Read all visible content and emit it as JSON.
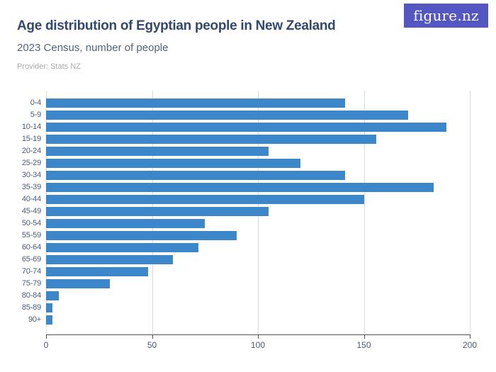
{
  "header": {
    "title": "Age distribution of Egyptian people in New Zealand",
    "subtitle": "2023 Census, number of people",
    "provider": "Provider: Stats NZ"
  },
  "logo": {
    "text": "figure.nz"
  },
  "chart_data": {
    "type": "bar",
    "orientation": "horizontal",
    "title": "Age distribution of Egyptian people in New Zealand",
    "subtitle": "2023 Census, number of people",
    "categories": [
      "0-4",
      "5-9",
      "10-14",
      "15-19",
      "20-24",
      "25-29",
      "30-34",
      "35-39",
      "40-44",
      "45-49",
      "50-54",
      "55-59",
      "60-64",
      "65-69",
      "70-74",
      "75-79",
      "80-84",
      "85-89",
      "90+"
    ],
    "values": [
      141,
      171,
      189,
      156,
      105,
      120,
      141,
      183,
      150,
      105,
      75,
      90,
      72,
      60,
      48,
      30,
      6,
      3,
      3
    ],
    "xlim": [
      0,
      200
    ],
    "xticks": [
      0,
      50,
      100,
      150,
      200
    ],
    "xlabel": "",
    "grid": "vertical",
    "legend": "none",
    "bar_color": "#3c87c9"
  },
  "colors": {
    "bar": "#3c87c9",
    "title_text": "#34486d",
    "subtitle_text": "#546379",
    "provider_text": "#a7abae",
    "axis_text": "#4b5a7a",
    "gridline": "#d8dadc",
    "axis_line": "#4f5255",
    "logo_background": "#5457c2"
  }
}
